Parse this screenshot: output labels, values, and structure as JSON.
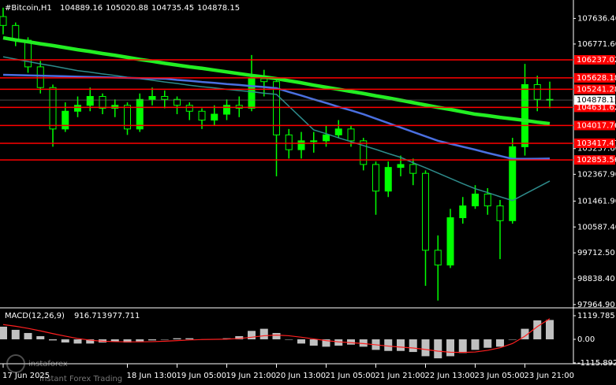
{
  "chart_data": [
    {
      "type": "candlestick",
      "title": "#Bitcoin,H1",
      "info": [
        104889.16,
        105020.88,
        104735.45
      ],
      "watermark": [
        "instaforex",
        "Instant Forex Trading"
      ],
      "categories": [
        "17 Jun 2025",
        null,
        null,
        null,
        null,
        null,
        null,
        null,
        null,
        null,
        "18 Jun 13:00",
        null,
        null,
        null,
        "19 Jun 05:00",
        null,
        null,
        null,
        "19 Jun 21:00",
        null,
        null,
        null,
        "20 Jun 13:00",
        null,
        null,
        null,
        "21 Jun 05:00",
        null,
        null,
        null,
        "21 Jun 21:00",
        null,
        null,
        null,
        "22 Jun 13:00",
        null,
        null,
        null,
        "23 Jun 05:00",
        null,
        null,
        null,
        "23 Jun 21:00",
        null,
        null
      ],
      "open": [
        107700,
        107400,
        106900,
        106000,
        105300,
        103900,
        104500,
        104700,
        105000,
        104600,
        104700,
        103900,
        104900,
        105000,
        104900,
        104700,
        104500,
        104200,
        104400,
        104700,
        104600,
        105600,
        105500,
        103700,
        103200,
        103500,
        103500,
        103700,
        103900,
        103500,
        102700,
        101800,
        102600,
        102700,
        102400,
        99800,
        99300,
        100900,
        101300,
        101700,
        101300,
        100800,
        103300,
        105400,
        104900
      ],
      "high": [
        108000,
        107500,
        107000,
        106200,
        105400,
        104800,
        105000,
        105300,
        105100,
        104900,
        104800,
        105100,
        105300,
        105200,
        105000,
        104800,
        104600,
        104700,
        104900,
        105000,
        106400,
        105900,
        105600,
        103900,
        103800,
        103800,
        104000,
        104200,
        104000,
        103600,
        102800,
        102800,
        103000,
        102900,
        102500,
        100300,
        101200,
        101600,
        102000,
        101900,
        101500,
        103600,
        106100,
        105700,
        105500
      ],
      "low": [
        107100,
        106700,
        105800,
        105100,
        103300,
        103800,
        104300,
        104500,
        104400,
        104300,
        103700,
        103800,
        104700,
        104600,
        104400,
        104200,
        103900,
        104000,
        104200,
        104300,
        104500,
        105000,
        102300,
        102900,
        102900,
        103100,
        103300,
        103600,
        103300,
        102500,
        101000,
        101600,
        102300,
        102000,
        98600,
        98100,
        99200,
        100700,
        101200,
        101000,
        99500,
        100700,
        103000,
        104500,
        104600
      ],
      "close": [
        107400,
        106900,
        106000,
        105300,
        103900,
        104500,
        104700,
        105000,
        104600,
        104700,
        103900,
        104900,
        105000,
        104900,
        104700,
        104500,
        104200,
        104400,
        104700,
        104600,
        105600,
        105500,
        103700,
        103200,
        103500,
        103500,
        103700,
        103900,
        103500,
        102700,
        101800,
        102600,
        102700,
        102400,
        99800,
        99300,
        100900,
        101300,
        101700,
        101300,
        100800,
        103300,
        105400,
        104900,
        104878.15
      ],
      "candle_color": "#00ff00",
      "series": [
        {
          "color": "#2e8b8b",
          "width": 1.5,
          "values": [
            106340,
            106260,
            106180,
            106100,
            106030,
            105950,
            105870,
            105820,
            105760,
            105710,
            105650,
            105600,
            105550,
            105490,
            105440,
            105380,
            105330,
            105290,
            105240,
            105200,
            105160,
            105110,
            105070,
            104670,
            104270,
            103870,
            103740,
            103600,
            103470,
            103340,
            103210,
            103070,
            102940,
            102760,
            102590,
            102410,
            102230,
            102050,
            101880,
            101750,
            101610,
            101480,
            101700,
            101920,
            102140
          ]
        },
        {
          "color": "#4a6fe0",
          "width": 2.5,
          "values": [
            105730,
            105720,
            105710,
            105700,
            105690,
            105680,
            105670,
            105660,
            105650,
            105640,
            105630,
            105620,
            105610,
            105600,
            105560,
            105530,
            105490,
            105460,
            105420,
            105390,
            105350,
            105320,
            105280,
            105150,
            105030,
            104900,
            104780,
            104650,
            104530,
            104400,
            104250,
            104100,
            103950,
            103800,
            103650,
            103500,
            103400,
            103300,
            103200,
            103090,
            102990,
            102890,
            102890,
            102895,
            102900
          ]
        },
        {
          "color": "#22ee22",
          "width": 4.5,
          "values": [
            106980,
            106910,
            106850,
            106780,
            106720,
            106650,
            106580,
            106520,
            106450,
            106390,
            106320,
            106250,
            106190,
            106120,
            106060,
            106000,
            105950,
            105890,
            105830,
            105770,
            105710,
            105660,
            105600,
            105530,
            105460,
            105380,
            105310,
            105240,
            105170,
            105100,
            105020,
            104950,
            104870,
            104790,
            104710,
            104630,
            104560,
            104480,
            104400,
            104350,
            104290,
            104240,
            104190,
            104130,
            104080
          ]
        }
      ],
      "levels": [
        106237.02,
        105628.18,
        105241.28,
        104631.62,
        104017.76,
        103417.47,
        102853.56
      ],
      "level_color": "#ff0000",
      "ylim": [
        97880,
        108260
      ],
      "yticks": [
        {
          "value": 107636.4,
          "label": "107636.40"
        },
        {
          "value": 106771.6,
          "label": "106771.60"
        },
        {
          "value": 103237.6,
          "label": "103237.60"
        },
        {
          "value": 102367.9,
          "label": "102367.90"
        },
        {
          "value": 101461.9,
          "label": "101461.90"
        },
        {
          "value": 100587.4,
          "label": "100587.40"
        },
        {
          "value": 99712.5,
          "label": "99712.50"
        },
        {
          "value": 98838.4,
          "label": "98838.40"
        },
        {
          "value": 97964.9,
          "label": "97964.90"
        }
      ]
    },
    {
      "type": "macd",
      "title": "MACD(12,26,9)",
      "series": [
        {
          "color": "#c0c0c0",
          "values": [
            600,
            450,
            300,
            150,
            -50,
            -150,
            -200,
            -200,
            -150,
            -100,
            -150,
            -100,
            -50,
            0,
            50,
            50,
            0,
            0,
            50,
            150,
            400,
            500,
            300,
            0,
            -200,
            -300,
            -350,
            -300,
            -250,
            -350,
            -500,
            -550,
            -550,
            -600,
            -800,
            -900,
            -800,
            -650,
            -500,
            -400,
            -350,
            0,
            500,
            900,
            916.713
          ]
        },
        {
          "color": "#ff2020",
          "values": [
            700,
            620,
            520,
            400,
            270,
            150,
            40,
            -40,
            -90,
            -110,
            -120,
            -120,
            -110,
            -90,
            -60,
            -30,
            -10,
            0,
            10,
            40,
            100,
            170,
            200,
            170,
            100,
            20,
            -60,
            -120,
            -160,
            -200,
            -260,
            -320,
            -370,
            -410,
            -480,
            -560,
            -610,
            -620,
            -600,
            -520,
            -400,
            -200,
            150,
            600,
            977.711
          ]
        }
      ],
      "ylim": [
        -1157,
        1455
      ],
      "yticks": [
        1119.785,
        {
          "value": 0,
          "label": "0.00"
        },
        -1115.892
      ]
    }
  ]
}
